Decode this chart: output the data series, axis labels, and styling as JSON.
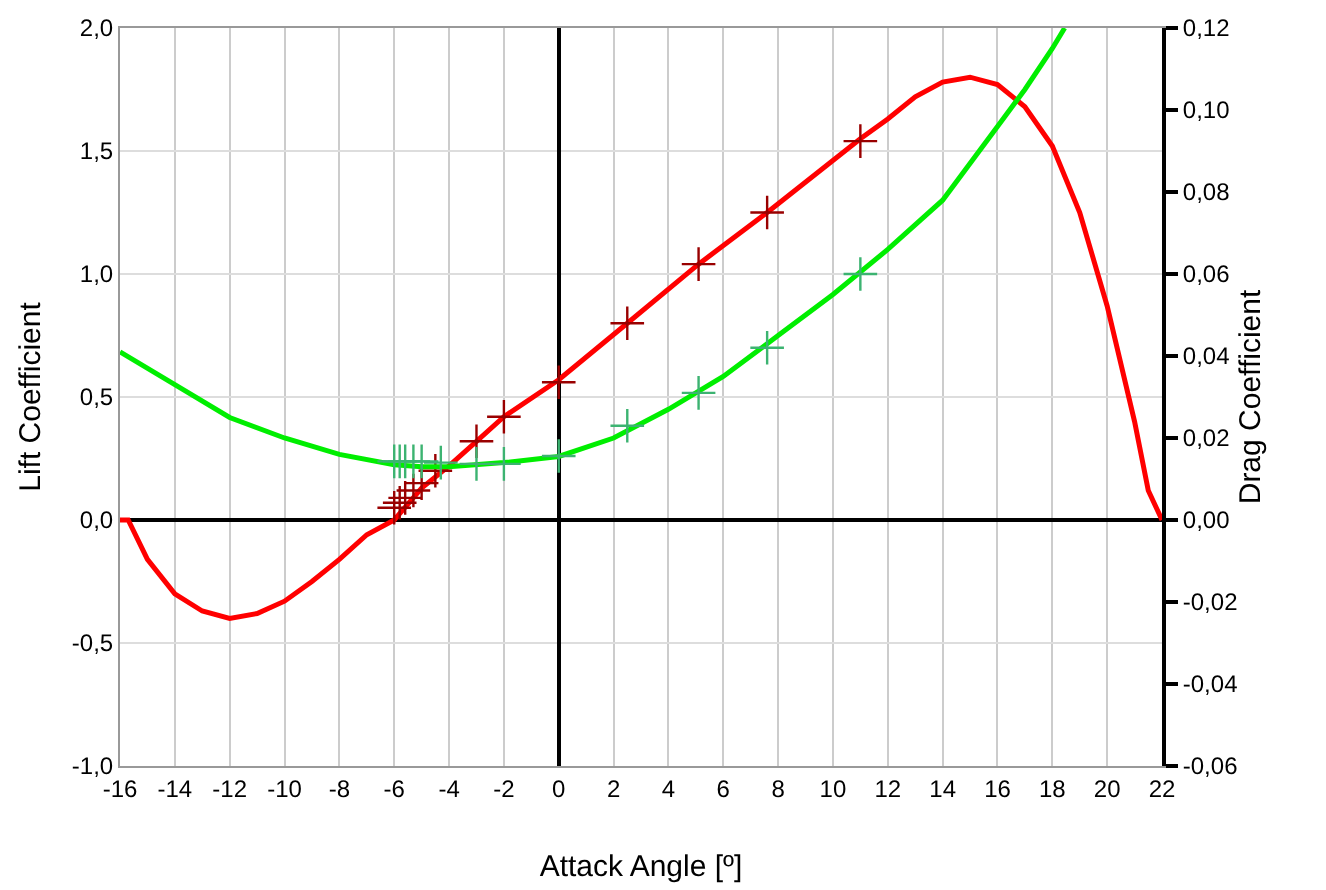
{
  "chart_data": {
    "type": "line",
    "xlabel": "Attack Angle [º]",
    "ylabel": "Lift Coefficient",
    "y2label": "Drag Coefficient",
    "xlim": [
      -16,
      22
    ],
    "xticks": [
      -16,
      -14,
      -12,
      -10,
      -8,
      -6,
      -4,
      -2,
      0,
      2,
      4,
      6,
      8,
      10,
      12,
      14,
      16,
      18,
      20,
      22
    ],
    "ylim": [
      -1,
      2
    ],
    "yticks": [
      {
        "value": -1,
        "label": "-1,0"
      },
      {
        "value": -0.5,
        "label": "-0,5"
      },
      {
        "value": 0,
        "label": "0,0"
      },
      {
        "value": 0.5,
        "label": "0,5"
      },
      {
        "value": 1,
        "label": "1,0"
      },
      {
        "value": 1.5,
        "label": "1,5"
      },
      {
        "value": 2,
        "label": "2,0"
      }
    ],
    "y2lim": [
      -0.06,
      0.12
    ],
    "y2ticks": [
      {
        "value": -0.06,
        "label": "-0,06"
      },
      {
        "value": -0.04,
        "label": "-0,04"
      },
      {
        "value": -0.02,
        "label": "-0,02"
      },
      {
        "value": 0,
        "label": "0,00"
      },
      {
        "value": 0.02,
        "label": "0,02"
      },
      {
        "value": 0.04,
        "label": "0,04"
      },
      {
        "value": 0.06,
        "label": "0,06"
      },
      {
        "value": 0.08,
        "label": "0,08"
      },
      {
        "value": 0.1,
        "label": "0,10"
      },
      {
        "value": 0.12,
        "label": "0,12"
      }
    ],
    "grid": true,
    "series": [
      {
        "color": "#ff0000",
        "marker": "none",
        "x": [
          -16,
          -15.7,
          -15,
          -14,
          -13,
          -12,
          -11,
          -10,
          -9,
          -8,
          -7,
          -6,
          -5,
          -4,
          -3,
          -2,
          0,
          2.5,
          5.1,
          7.6,
          11,
          12,
          13,
          14,
          15,
          16,
          17,
          18,
          19,
          20,
          21,
          21.5,
          22
        ],
        "values": [
          0,
          0,
          -0.16,
          -0.3,
          -0.37,
          -0.4,
          -0.38,
          -0.33,
          -0.25,
          -0.16,
          -0.06,
          0,
          0.13,
          0.22,
          0.32,
          0.42,
          0.57,
          0.8,
          1.04,
          1.25,
          1.55,
          1.63,
          1.72,
          1.78,
          1.8,
          1.77,
          1.68,
          1.52,
          1.25,
          0.87,
          0.4,
          0.12,
          0
        ]
      },
      {
        "type": "scatter",
        "color": "#990000",
        "marker": "cross",
        "x": [
          -6,
          -5.8,
          -5.6,
          -5.3,
          -5,
          -4.5,
          -3,
          -2,
          0,
          2.5,
          5.1,
          7.6,
          11
        ],
        "values": [
          0.05,
          0.07,
          0.09,
          0.12,
          0.15,
          0.2,
          0.32,
          0.42,
          0.56,
          0.8,
          1.04,
          1.25,
          1.54
        ]
      },
      {
        "axis": "y2",
        "color": "#00ee00",
        "marker": "none",
        "x": [
          -16,
          -14,
          -12,
          -10,
          -8,
          -6,
          -5,
          -4,
          -2,
          0,
          2,
          4,
          6,
          8,
          10,
          12,
          14,
          16,
          17,
          18,
          18.45
        ],
        "values": [
          0.041,
          0.033,
          0.025,
          0.02,
          0.016,
          0.0135,
          0.013,
          0.013,
          0.014,
          0.0155,
          0.02,
          0.027,
          0.035,
          0.045,
          0.055,
          0.066,
          0.078,
          0.096,
          0.105,
          0.115,
          0.12
        ]
      },
      {
        "type": "scatter",
        "axis": "y2",
        "color": "#3cb371",
        "marker": "cross",
        "x": [
          -6,
          -5.8,
          -5.6,
          -5.3,
          -5,
          -4.3,
          -3,
          -2,
          0,
          2.5,
          5.1,
          7.6,
          11
        ],
        "values": [
          0.0143,
          0.0143,
          0.0143,
          0.0143,
          0.0143,
          0.014,
          0.0137,
          0.0137,
          0.0156,
          0.023,
          0.031,
          0.042,
          0.06
        ]
      }
    ]
  }
}
